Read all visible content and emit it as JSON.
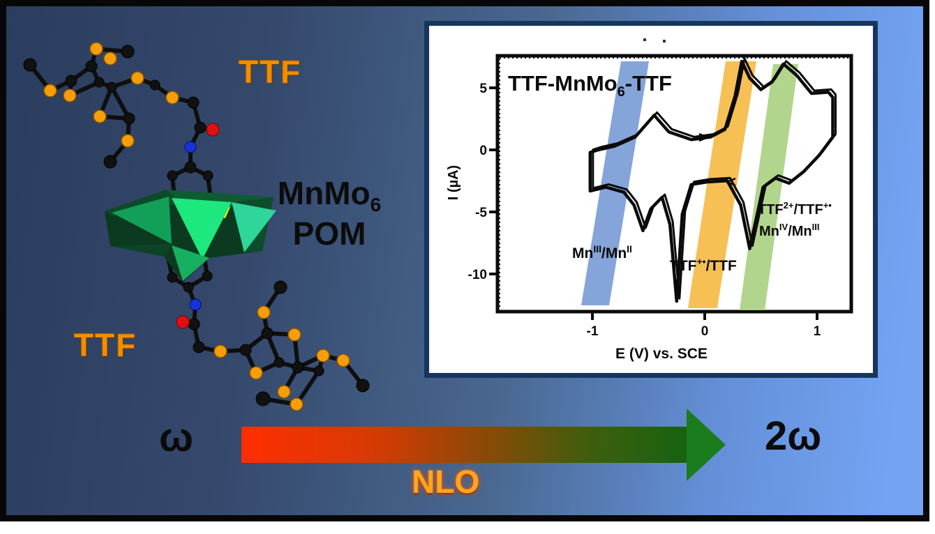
{
  "scene": {
    "labels": {
      "ttf_top": "TTF",
      "ttf_bottom": "TTF",
      "pom_line1_base": "MnMo",
      "pom_line1_sub": "6",
      "pom_line2": "POM",
      "omega": "ω",
      "two_omega": "2ω",
      "nlo": "NLO"
    },
    "colors": {
      "background_dark": "#2b3d5e",
      "background_light": "#74a3f4",
      "outer_frame": "#070707",
      "sulfur_atom": "#f59e0b",
      "carbon_atom": "#111111",
      "oxygen_atom": "#e01010",
      "nitrogen_atom": "#1733d6",
      "pom_bright_green": "#1de87d",
      "pom_dark_green": "#0b3a20",
      "pom_red": "#c81400",
      "pom_yellow": "#ffe400",
      "arrow_start_red": "#ff2e00",
      "arrow_end_green": "#1a7c1c",
      "ttf_label_orange": "#f28c00",
      "nlo_label_orange": "#ffa51f"
    }
  },
  "inset": {
    "border_color": "#17365d",
    "title": {
      "b1": "TTF-MnMo",
      "sub": "6",
      "b2": "-TTF"
    },
    "ylabel": "I (µA)",
    "xlabel": "E (V) vs. SCE",
    "yticks": [
      "5",
      "0",
      "-5",
      "-10"
    ],
    "xticks": [
      "-1",
      "0",
      "1"
    ],
    "redox_labels": {
      "mn32": {
        "b1": "Mn",
        "s1": "III",
        "b2": "/Mn",
        "s2": "II"
      },
      "ttf_rad": {
        "b1": "TTF",
        "s1": "+•",
        "b2": "/TTF"
      },
      "ttf_di": {
        "b1": "TTF",
        "s1": "2+",
        "b2": "/TTF",
        "s2": "+•"
      },
      "mn43": {
        "b1": "Mn",
        "s1": "IV",
        "b2": "/Mn",
        "s2": "III"
      }
    },
    "band_colors": {
      "blue": "#6f94d4",
      "orange": "#f5b942",
      "green": "#a8d080"
    }
  },
  "chart_data": {
    "type": "line",
    "title": "TTF-MnMo6-TTF",
    "xlabel": "E (V) vs. SCE",
    "ylabel": "I (µA)",
    "xlim": [
      -1.85,
      1.35
    ],
    "ylim": [
      -13,
      7.5
    ],
    "xticks": [
      -1,
      0,
      1
    ],
    "yticks": [
      5,
      0,
      -5,
      -10
    ],
    "grid": false,
    "legend": false,
    "series": [
      {
        "name": "cyclic voltammogram of TTF-MnMo6-TTF",
        "points": [
          [
            -1.02,
            -0.6
          ],
          [
            -1.02,
            -0.2
          ],
          [
            -0.95,
            0.0
          ],
          [
            -0.8,
            0.3
          ],
          [
            -0.62,
            1.0
          ],
          [
            -0.45,
            2.7
          ],
          [
            -0.32,
            1.4
          ],
          [
            -0.12,
            0.8
          ],
          [
            0.05,
            1.0
          ],
          [
            0.18,
            1.6
          ],
          [
            0.27,
            4.2
          ],
          [
            0.33,
            6.9
          ],
          [
            0.4,
            5.6
          ],
          [
            0.5,
            4.7
          ],
          [
            0.6,
            5.3
          ],
          [
            0.7,
            6.7
          ],
          [
            0.82,
            5.8
          ],
          [
            0.95,
            4.4
          ],
          [
            1.1,
            4.5
          ],
          [
            1.14,
            4.1
          ],
          [
            1.14,
            1.0
          ],
          [
            1.02,
            -0.4
          ],
          [
            0.88,
            -1.7
          ],
          [
            0.75,
            -2.6
          ],
          [
            0.63,
            -2.2
          ],
          [
            0.52,
            -2.9
          ],
          [
            0.4,
            -7.7
          ],
          [
            0.32,
            -4.3
          ],
          [
            0.2,
            -2.4
          ],
          [
            0.02,
            -2.5
          ],
          [
            -0.12,
            -2.7
          ],
          [
            -0.2,
            -5.0
          ],
          [
            -0.25,
            -11.8
          ],
          [
            -0.31,
            -5.8
          ],
          [
            -0.38,
            -3.7
          ],
          [
            -0.48,
            -4.6
          ],
          [
            -0.55,
            -6.3
          ],
          [
            -0.63,
            -4.3
          ],
          [
            -0.72,
            -3.3
          ],
          [
            -0.88,
            -2.9
          ],
          [
            -1.02,
            -3.2
          ],
          [
            -1.02,
            -0.6
          ]
        ]
      }
    ],
    "annotations": [
      {
        "label": "MnIII/MnII",
        "band_color": "#6f94d4",
        "E_center": -0.45
      },
      {
        "label": "TTF+•/TTF",
        "band_color": "#f5b942",
        "E_center": 0.35
      },
      {
        "label": "TTF2+/TTF+•, MnIV/MnIII",
        "band_color": "#a8d080",
        "E_center": 0.8
      }
    ]
  }
}
